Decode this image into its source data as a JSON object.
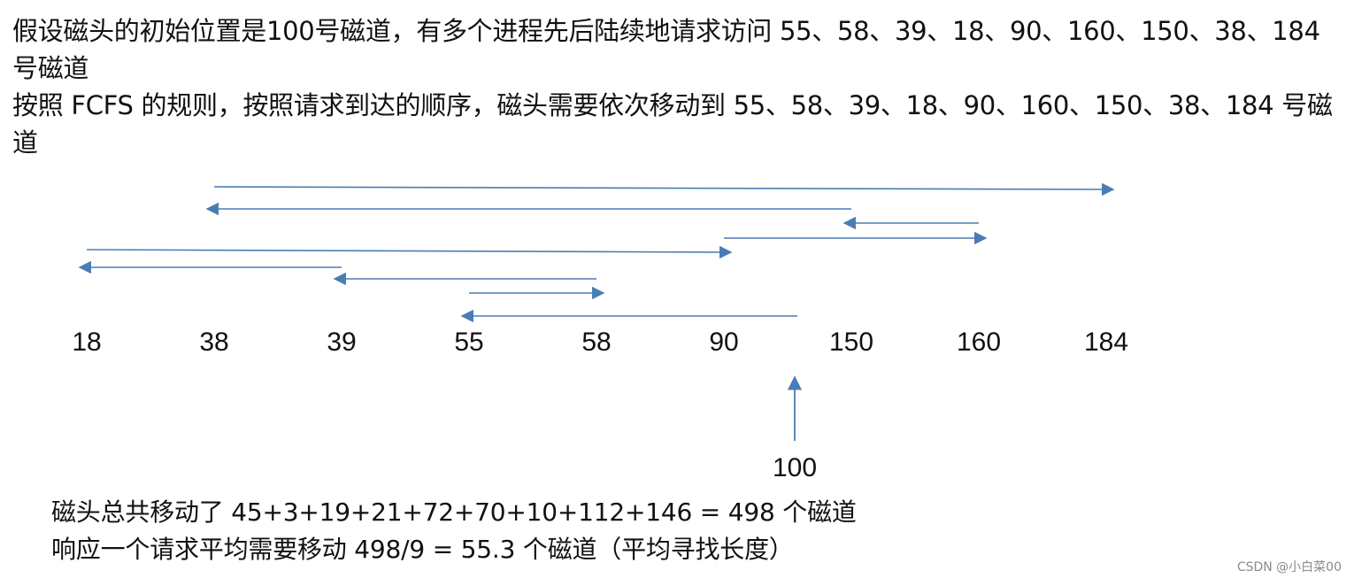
{
  "intro": {
    "line1": "假设磁头的初始位置是100号磁道，有多个进程先后陆续地请求访问 55、58、39、18、90、160、150、38、184 号磁道",
    "line2": "按照 FCFS 的规则，按照请求到达的顺序，磁头需要依次移动到 55、58、39、18、90、160、150、38、184 号磁道"
  },
  "diagram": {
    "track_labels": [
      "18",
      "38",
      "39",
      "55",
      "58",
      "90",
      "150",
      "160",
      "184"
    ],
    "start_label": "100",
    "arrow_color": "#4a7db3",
    "moves": [
      {
        "from": "100",
        "to": "55"
      },
      {
        "from": "55",
        "to": "58"
      },
      {
        "from": "58",
        "to": "39"
      },
      {
        "from": "39",
        "to": "18"
      },
      {
        "from": "18",
        "to": "90"
      },
      {
        "from": "90",
        "to": "160"
      },
      {
        "from": "160",
        "to": "150"
      },
      {
        "from": "150",
        "to": "38"
      },
      {
        "from": "38",
        "to": "184"
      }
    ]
  },
  "summary": {
    "line1": "磁头总共移动了  45+3+19+21+72+70+10+112+146 = 498  个磁道",
    "line2": "响应一个请求平均需要移动 498/9 = 55.3 个磁道（平均寻找长度）"
  },
  "watermark": "CSDN @小白菜00"
}
